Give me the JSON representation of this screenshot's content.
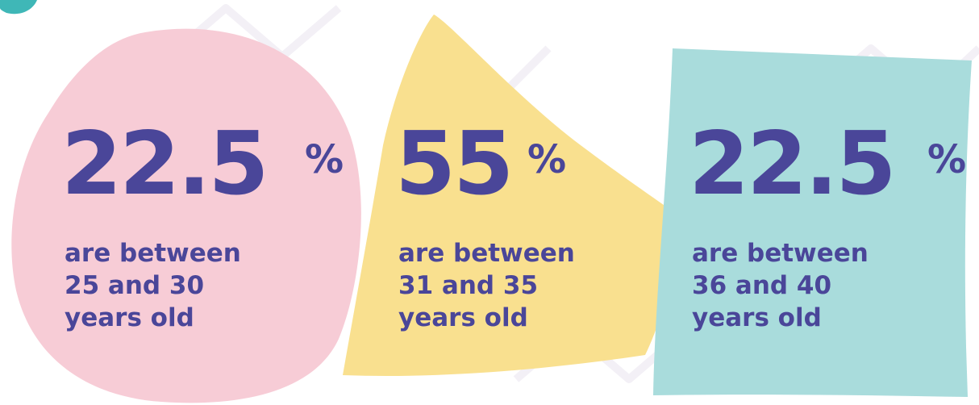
{
  "colors": {
    "text": "#4a4699",
    "pink": "#f7ccd6",
    "yellow": "#f9e08f",
    "teal": "#a9dcdc",
    "corner_accent": "#3fb7b7"
  },
  "stats": [
    {
      "value": "22.5",
      "unit": "%",
      "line1": "are between",
      "line2": "25 and 30",
      "line3": "years old"
    },
    {
      "value": "55",
      "unit": "%",
      "line1": "are between",
      "line2": "31 and 35",
      "line3": "years old"
    },
    {
      "value": "22.5",
      "unit": "%",
      "line1": "are between",
      "line2": "36 and 40",
      "line3": "years old"
    }
  ]
}
